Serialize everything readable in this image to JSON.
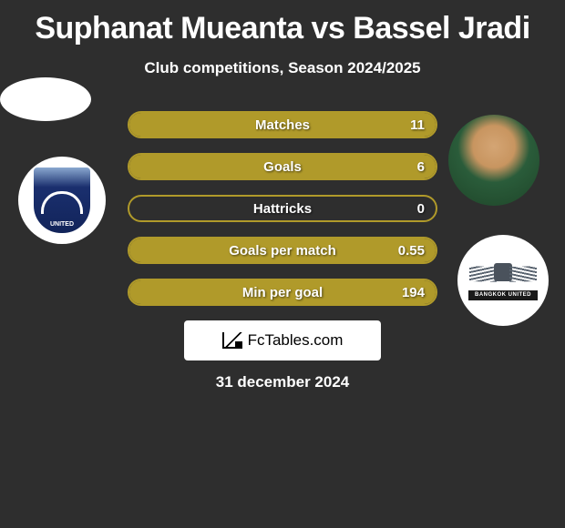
{
  "title": "Suphanat Mueanta vs Bassel Jradi",
  "subtitle": "Club competitions, Season 2024/2025",
  "date": "31 december 2024",
  "logo_text": "FcTables.com",
  "colors": {
    "background": "#2e2e2e",
    "bar_border": "#b09a2a",
    "bar_fill": "#b09a2a",
    "text": "#ffffff"
  },
  "stats": [
    {
      "label": "Matches",
      "value": "11",
      "fill_pct": 100
    },
    {
      "label": "Goals",
      "value": "6",
      "fill_pct": 100
    },
    {
      "label": "Hattricks",
      "value": "0",
      "fill_pct": 0
    },
    {
      "label": "Goals per match",
      "value": "0.55",
      "fill_pct": 100
    },
    {
      "label": "Min per goal",
      "value": "194",
      "fill_pct": 100
    }
  ],
  "left_badge_text": "UNITED",
  "right_badge_text": "BANGKOK UNITED"
}
